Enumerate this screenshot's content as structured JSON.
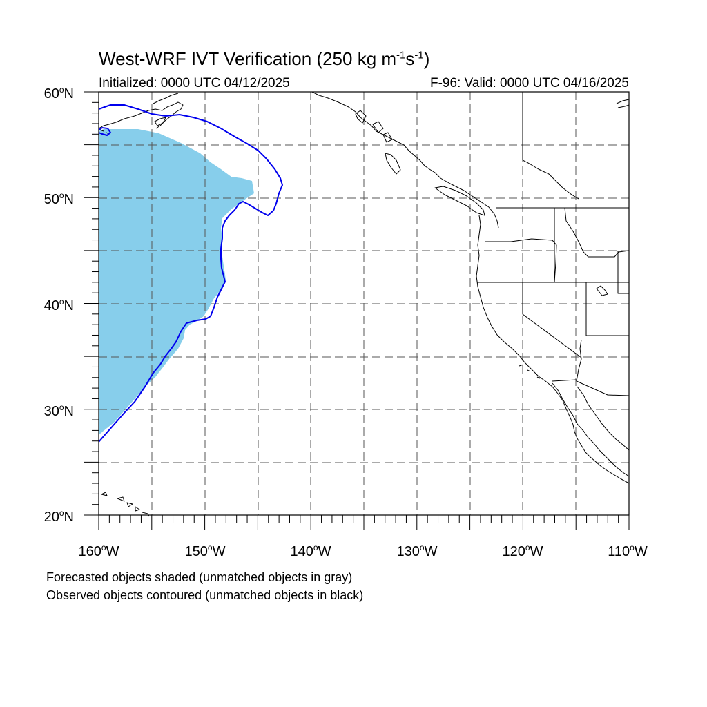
{
  "title": {
    "prefix": "West-WRF IVT Verification (250 kg m",
    "exp1": "-1",
    "mid": "s",
    "exp2": "-1",
    "suffix": ")"
  },
  "initialized": "Initialized: 0000 UTC 04/12/2025",
  "valid": "F-96: Valid: 0000 UTC 04/16/2025",
  "lat_labels": [
    {
      "num": "60",
      "hemi": "N"
    },
    {
      "num": "50",
      "hemi": "N"
    },
    {
      "num": "40",
      "hemi": "N"
    },
    {
      "num": "30",
      "hemi": "N"
    },
    {
      "num": "20",
      "hemi": "N"
    }
  ],
  "lon_labels": [
    {
      "num": "160",
      "hemi": "W"
    },
    {
      "num": "150",
      "hemi": "W"
    },
    {
      "num": "140",
      "hemi": "W"
    },
    {
      "num": "130",
      "hemi": "W"
    },
    {
      "num": "120",
      "hemi": "W"
    },
    {
      "num": "110",
      "hemi": "W"
    }
  ],
  "degree_symbol": "o",
  "caption_forecast": "Forecasted objects shaded (unmatched objects in gray)",
  "caption_observed": "Observed objects contoured (unmatched objects in black)",
  "colors": {
    "forecast_fill": "#87ceeb",
    "observed_contour": "#0000ee",
    "grid": "#555555",
    "coast": "#000000"
  }
}
